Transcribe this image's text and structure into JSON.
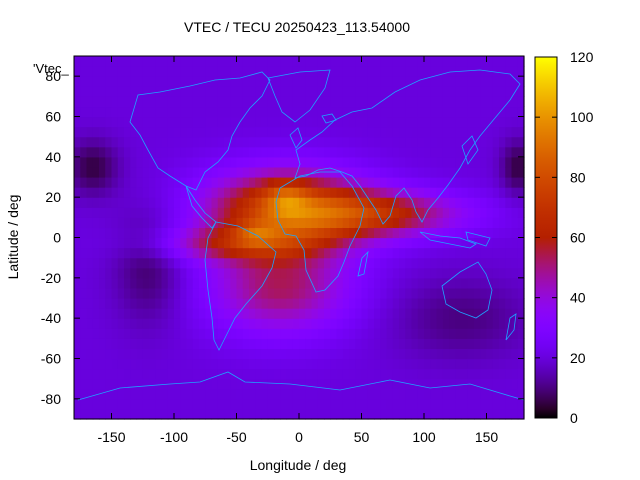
{
  "chart_data": {
    "type": "heatmap",
    "title": "VTEC / TECU 20250423_113.54000",
    "xlabel": "Longitude / deg",
    "ylabel": "Latitude / deg",
    "key_label": "'Vtec_",
    "xlim": [
      -180,
      180
    ],
    "ylim": [
      -90,
      90
    ],
    "x_ticks": [
      -150,
      -100,
      -50,
      0,
      50,
      100,
      150
    ],
    "y_ticks": [
      -80,
      -60,
      -40,
      -20,
      0,
      20,
      40,
      60,
      80
    ],
    "colorbar": {
      "range": [
        0,
        120
      ],
      "ticks": [
        0,
        20,
        40,
        60,
        80,
        100,
        120
      ],
      "palette": "black-purple-red-orange-yellow"
    },
    "grid_resolution_deg": 5,
    "background_value": 20,
    "features": [
      {
        "lon": -10,
        "lat": 14,
        "sigma_lon": 45,
        "sigma_lat": 14,
        "value": 55
      },
      {
        "lon": 60,
        "lat": 12,
        "sigma_lon": 50,
        "sigma_lat": 8,
        "value": 40
      },
      {
        "lon": -50,
        "lat": -3,
        "sigma_lon": 45,
        "sigma_lat": 6,
        "value": 25
      },
      {
        "lon": -15,
        "lat": -25,
        "sigma_lon": 40,
        "sigma_lat": 16,
        "value": 32
      },
      {
        "lon": -35,
        "lat": 2,
        "sigma_lon": 12,
        "sigma_lat": 4,
        "value": 15
      },
      {
        "lon": -10,
        "lat": 20,
        "sigma_lon": 12,
        "sigma_lat": 6,
        "value": 18
      },
      {
        "lon": -165,
        "lat": 35,
        "sigma_lon": 15,
        "sigma_lat": 10,
        "value": -15
      },
      {
        "lon": 175,
        "lat": 35,
        "sigma_lon": 10,
        "sigma_lat": 10,
        "value": -15
      },
      {
        "lon": -120,
        "lat": -15,
        "sigma_lon": 20,
        "sigma_lat": 20,
        "value": -12
      },
      {
        "lon": 130,
        "lat": -40,
        "sigma_lon": 40,
        "sigma_lat": 15,
        "value": -10
      }
    ]
  }
}
